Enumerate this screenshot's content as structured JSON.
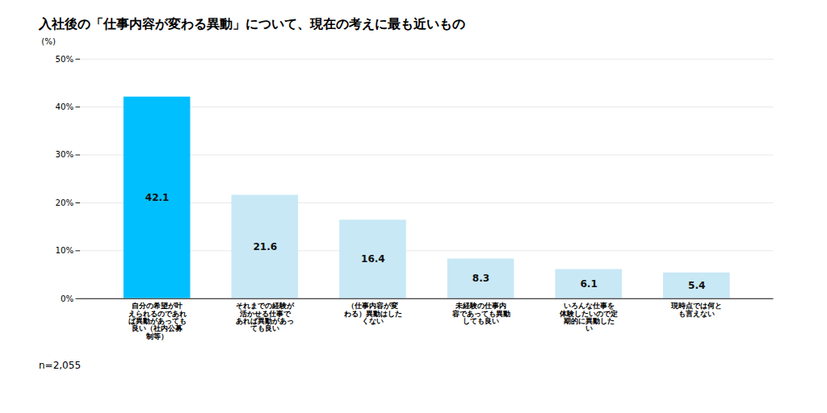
{
  "chart_data": {
    "type": "bar",
    "title": "入社後の「仕事内容が変わる異動」について、現在の考えに最も近いもの",
    "categories": [
      "自分の希望が叶\nえられるのであれ\nば異動があっても\n良い（社内公募\n制等）",
      "それまでの経験が\n活かせる仕事で\nあれば異動があっ\nても良い",
      "（仕事内容が変\nわる）異動はした\nくない",
      "未経験の仕事内\n容であっても異動\nしても良い",
      "いろんな仕事を\n体験したいので定\n期的に異動した\nい",
      "現時点では何と\nも言えない"
    ],
    "values": [
      42.1,
      21.6,
      16.4,
      8.3,
      6.1,
      5.4
    ],
    "colors": [
      "#00bfff",
      "#c8e8f5",
      "#c8e8f5",
      "#c8e8f5",
      "#c8e8f5",
      "#c8e8f5"
    ],
    "ylim": [
      0,
      50
    ],
    "yticks": [
      {
        "value": 0,
        "label": "0%"
      },
      {
        "value": 10,
        "label": "10%"
      },
      {
        "value": 20,
        "label": "20%"
      },
      {
        "value": 30,
        "label": "30%"
      },
      {
        "value": 40,
        "label": "40%"
      },
      {
        "value": 50,
        "label": "50%"
      }
    ],
    "ylabel": "(%)",
    "note": "n=2,055",
    "grid": true,
    "data_labels": true
  }
}
